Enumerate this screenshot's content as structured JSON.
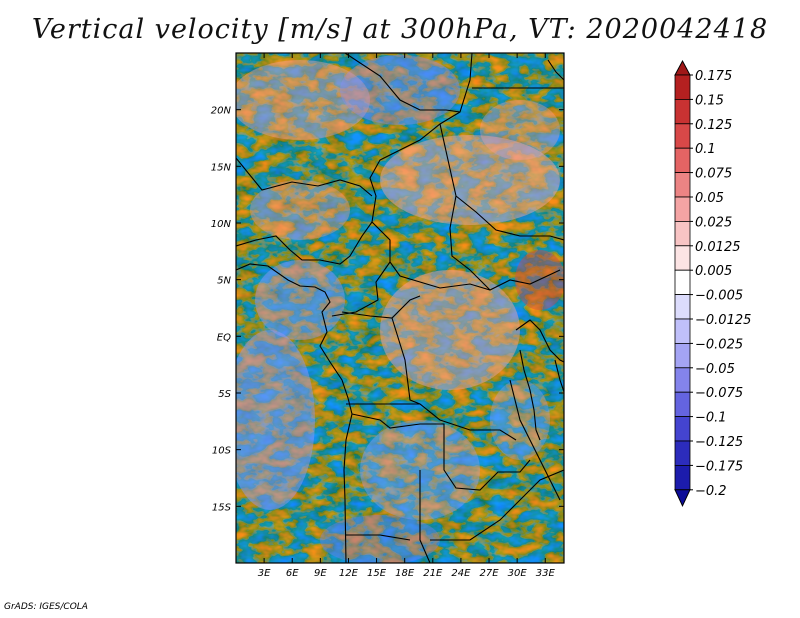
{
  "title": "Vertical velocity [m/s] at 300hPa, VT: 2020042418",
  "credit": "GrADS: IGES/COLA",
  "chart_data": {
    "type": "heatmap",
    "variable": "Vertical velocity",
    "units": "m/s",
    "level": "300hPa",
    "valid_time": "2020042418",
    "lon_range_deg": [
      0,
      35
    ],
    "lat_range_deg": [
      -20,
      25
    ],
    "x_tick_labels": [
      "3E",
      "6E",
      "9E",
      "12E",
      "15E",
      "18E",
      "21E",
      "24E",
      "27E",
      "30E",
      "33E"
    ],
    "x_tick_values": [
      3,
      6,
      9,
      12,
      15,
      18,
      21,
      24,
      27,
      30,
      33
    ],
    "y_tick_labels": [
      "20N",
      "15N",
      "10N",
      "5N",
      "EQ",
      "5S",
      "10S",
      "15S"
    ],
    "y_tick_values": [
      20,
      15,
      10,
      5,
      0,
      -5,
      -10,
      -15
    ],
    "colorbar": {
      "labels": [
        "0.175",
        "0.15",
        "0.125",
        "0.1",
        "0.075",
        "0.05",
        "0.025",
        "0.0125",
        "0.005",
        "−0.005",
        "−0.0125",
        "−0.025",
        "−0.05",
        "−0.075",
        "−0.1",
        "−0.125",
        "−0.175",
        "−0.2"
      ],
      "colors": [
        "#a01818",
        "#b42020",
        "#c83232",
        "#d84848",
        "#e46464",
        "#ec8484",
        "#f4a4a4",
        "#f8c4c4",
        "#fce4e4",
        "#ffffff",
        "#dcdcfc",
        "#c0c0fa",
        "#a4a4f4",
        "#8484ec",
        "#6464e0",
        "#4444d0",
        "#2c2cbc",
        "#1c1cac",
        "#0c0c98"
      ]
    }
  }
}
